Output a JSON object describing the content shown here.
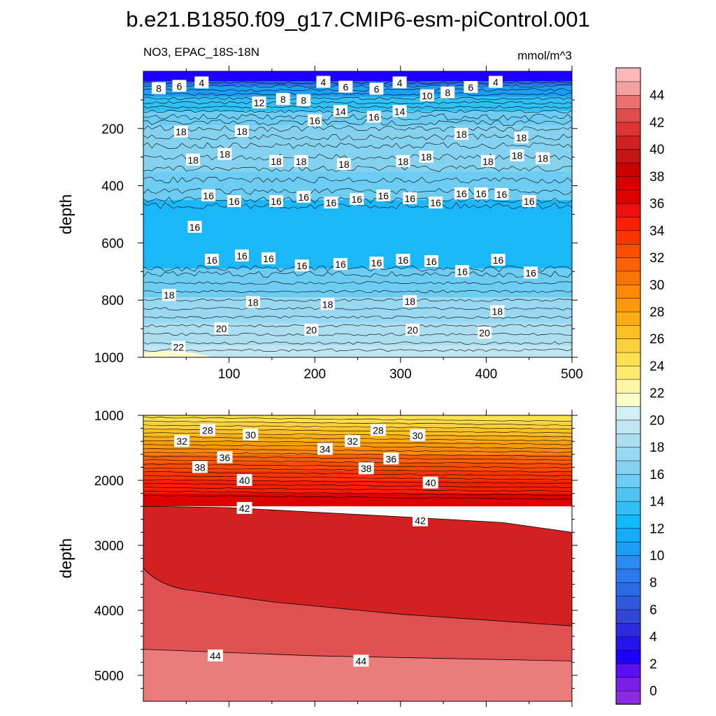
{
  "figure": {
    "title": "b.e21.B1850.f09_g17.CMIP6-esm-piControl.001"
  },
  "chart_data": [
    {
      "type": "contour",
      "panel": "upper",
      "variable_label": "NO3, EPAC_18S-18N",
      "units_label": "mmol/m^3",
      "ylabel": "depth",
      "xlabel": "",
      "xlim": [
        0,
        500
      ],
      "ylim": [
        0,
        1000
      ],
      "x_ticks": [
        "100",
        "200",
        "300",
        "400",
        "500"
      ],
      "y_ticks": [
        "200",
        "400",
        "600",
        "800",
        "1000"
      ],
      "contour_labels": [
        {
          "text": "8",
          "x": 18,
          "y": 60
        },
        {
          "text": "6",
          "x": 42,
          "y": 52
        },
        {
          "text": "4",
          "x": 68,
          "y": 40
        },
        {
          "text": "12",
          "x": 135,
          "y": 110
        },
        {
          "text": "8",
          "x": 163,
          "y": 98
        },
        {
          "text": "8",
          "x": 187,
          "y": 102
        },
        {
          "text": "4",
          "x": 210,
          "y": 38
        },
        {
          "text": "6",
          "x": 236,
          "y": 55
        },
        {
          "text": "6",
          "x": 272,
          "y": 62
        },
        {
          "text": "4",
          "x": 299,
          "y": 40
        },
        {
          "text": "10",
          "x": 331,
          "y": 85
        },
        {
          "text": "8",
          "x": 355,
          "y": 75
        },
        {
          "text": "6",
          "x": 382,
          "y": 56
        },
        {
          "text": "4",
          "x": 411,
          "y": 38
        },
        {
          "text": "14",
          "x": 230,
          "y": 140
        },
        {
          "text": "16",
          "x": 200,
          "y": 172
        },
        {
          "text": "16",
          "x": 269,
          "y": 160
        },
        {
          "text": "14",
          "x": 299,
          "y": 140
        },
        {
          "text": "18",
          "x": 44,
          "y": 212
        },
        {
          "text": "18",
          "x": 115,
          "y": 210
        },
        {
          "text": "18",
          "x": 371,
          "y": 220
        },
        {
          "text": "18",
          "x": 441,
          "y": 232
        },
        {
          "text": "18",
          "x": 58,
          "y": 310
        },
        {
          "text": "18",
          "x": 95,
          "y": 290
        },
        {
          "text": "18",
          "x": 155,
          "y": 315
        },
        {
          "text": "18",
          "x": 184,
          "y": 315
        },
        {
          "text": "18",
          "x": 234,
          "y": 325
        },
        {
          "text": "18",
          "x": 303,
          "y": 315
        },
        {
          "text": "18",
          "x": 330,
          "y": 300
        },
        {
          "text": "18",
          "x": 402,
          "y": 315
        },
        {
          "text": "18",
          "x": 436,
          "y": 295
        },
        {
          "text": "18",
          "x": 466,
          "y": 305
        },
        {
          "text": "16",
          "x": 76,
          "y": 435
        },
        {
          "text": "16",
          "x": 106,
          "y": 455
        },
        {
          "text": "16",
          "x": 155,
          "y": 455
        },
        {
          "text": "16",
          "x": 187,
          "y": 440
        },
        {
          "text": "16",
          "x": 219,
          "y": 460
        },
        {
          "text": "16",
          "x": 249,
          "y": 448
        },
        {
          "text": "16",
          "x": 280,
          "y": 435
        },
        {
          "text": "16",
          "x": 311,
          "y": 445
        },
        {
          "text": "16",
          "x": 341,
          "y": 460
        },
        {
          "text": "16",
          "x": 371,
          "y": 428
        },
        {
          "text": "16",
          "x": 394,
          "y": 428
        },
        {
          "text": "16",
          "x": 418,
          "y": 430
        },
        {
          "text": "16",
          "x": 450,
          "y": 455
        },
        {
          "text": "16",
          "x": 60,
          "y": 545
        },
        {
          "text": "16",
          "x": 80,
          "y": 660
        },
        {
          "text": "16",
          "x": 115,
          "y": 645
        },
        {
          "text": "16",
          "x": 146,
          "y": 655
        },
        {
          "text": "16",
          "x": 185,
          "y": 680
        },
        {
          "text": "16",
          "x": 230,
          "y": 675
        },
        {
          "text": "16",
          "x": 272,
          "y": 670
        },
        {
          "text": "16",
          "x": 303,
          "y": 660
        },
        {
          "text": "16",
          "x": 336,
          "y": 665
        },
        {
          "text": "16",
          "x": 372,
          "y": 700
        },
        {
          "text": "16",
          "x": 414,
          "y": 660
        },
        {
          "text": "16",
          "x": 452,
          "y": 705
        },
        {
          "text": "18",
          "x": 30,
          "y": 783
        },
        {
          "text": "18",
          "x": 128,
          "y": 808
        },
        {
          "text": "18",
          "x": 215,
          "y": 815
        },
        {
          "text": "18",
          "x": 311,
          "y": 805
        },
        {
          "text": "18",
          "x": 413,
          "y": 840
        },
        {
          "text": "20",
          "x": 91,
          "y": 900
        },
        {
          "text": "20",
          "x": 196,
          "y": 905
        },
        {
          "text": "20",
          "x": 314,
          "y": 905
        },
        {
          "text": "20",
          "x": 398,
          "y": 915
        },
        {
          "text": "22",
          "x": 41,
          "y": 965
        }
      ]
    },
    {
      "type": "contour",
      "panel": "lower",
      "ylabel": "depth",
      "xlabel": "",
      "xlim": [
        0,
        500
      ],
      "ylim": [
        1000,
        5400
      ],
      "y_ticks": [
        "1000",
        "2000",
        "3000",
        "4000",
        "5000"
      ],
      "contour_labels": [
        {
          "text": "28",
          "x": 75,
          "y": 1230
        },
        {
          "text": "30",
          "x": 125,
          "y": 1300
        },
        {
          "text": "32",
          "x": 45,
          "y": 1400
        },
        {
          "text": "34",
          "x": 212,
          "y": 1520
        },
        {
          "text": "32",
          "x": 244,
          "y": 1400
        },
        {
          "text": "28",
          "x": 274,
          "y": 1230
        },
        {
          "text": "30",
          "x": 320,
          "y": 1310
        },
        {
          "text": "36",
          "x": 95,
          "y": 1650
        },
        {
          "text": "38",
          "x": 66,
          "y": 1800
        },
        {
          "text": "38",
          "x": 260,
          "y": 1820
        },
        {
          "text": "36",
          "x": 289,
          "y": 1670
        },
        {
          "text": "40",
          "x": 118,
          "y": 2000
        },
        {
          "text": "40",
          "x": 335,
          "y": 2040
        },
        {
          "text": "42",
          "x": 118,
          "y": 2430
        },
        {
          "text": "42",
          "x": 323,
          "y": 2620
        },
        {
          "text": "44",
          "x": 84,
          "y": 4700
        },
        {
          "text": "44",
          "x": 254,
          "y": 4780
        }
      ]
    },
    {
      "type": "colorbar",
      "ticks": [
        "0",
        "2",
        "4",
        "6",
        "8",
        "10",
        "12",
        "14",
        "16",
        "18",
        "20",
        "22",
        "24",
        "26",
        "28",
        "30",
        "32",
        "34",
        "36",
        "38",
        "40",
        "42",
        "44"
      ],
      "colors": [
        "#8a2be2",
        "#7a1ee8",
        "#5a10f0",
        "#1e00ff",
        "#2414ec",
        "#2c2cde",
        "#3245d6",
        "#3058dc",
        "#2a6ae6",
        "#2a7aee",
        "#2a8cf2",
        "#1a9ef8",
        "#12acfa",
        "#10bafc",
        "#30c0f4",
        "#50c4f0",
        "#6cccf2",
        "#84d2f0",
        "#98d8f0",
        "#acdef0",
        "#c0e6f2",
        "#d4eef6",
        "#fcfcc8",
        "#fcf6a6",
        "#fceb70",
        "#fce050",
        "#fcd23c",
        "#fcc020",
        "#fcac14",
        "#fc9a0c",
        "#fc8804",
        "#fc7404",
        "#fc6004",
        "#fc4c00",
        "#fc3400",
        "#f82000",
        "#ec1010",
        "#dc0000",
        "#d40000",
        "#c80000",
        "#c41414",
        "#d02020",
        "#dc3434",
        "#e04c4c",
        "#ec7070",
        "#f4a0a0",
        "#fcb8b8"
      ]
    }
  ]
}
